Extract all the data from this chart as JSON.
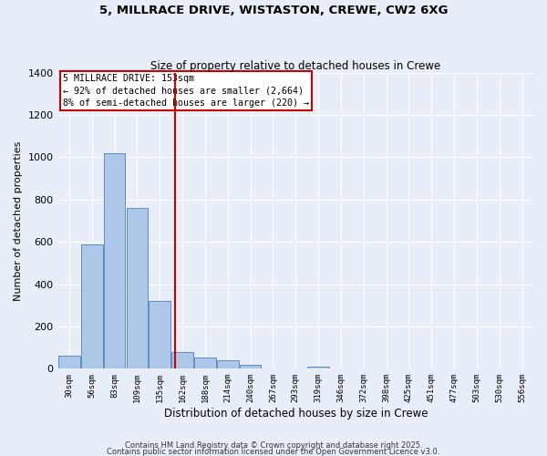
{
  "title1": "5, MILLRACE DRIVE, WISTASTON, CREWE, CW2 6XG",
  "title2": "Size of property relative to detached houses in Crewe",
  "xlabel": "Distribution of detached houses by size in Crewe",
  "ylabel": "Number of detached properties",
  "categories": [
    "30sqm",
    "56sqm",
    "83sqm",
    "109sqm",
    "135sqm",
    "162sqm",
    "188sqm",
    "214sqm",
    "240sqm",
    "267sqm",
    "293sqm",
    "319sqm",
    "346sqm",
    "372sqm",
    "398sqm",
    "425sqm",
    "451sqm",
    "477sqm",
    "503sqm",
    "530sqm",
    "556sqm"
  ],
  "values": [
    60,
    590,
    1020,
    760,
    320,
    80,
    55,
    40,
    20,
    0,
    0,
    10,
    0,
    0,
    0,
    0,
    0,
    0,
    0,
    0,
    0
  ],
  "bar_color": "#aec6e8",
  "bar_edge_color": "#5b8ec4",
  "annotation_line1": "5 MILLRACE DRIVE: 153sqm",
  "annotation_line2": "← 92% of detached houses are smaller (2,664)",
  "annotation_line3": "8% of semi-detached houses are larger (220) →",
  "annotation_box_color": "#ffffff",
  "annotation_box_edge": "#cc0000",
  "redline_color": "#cc0000",
  "ylim": [
    0,
    1400
  ],
  "yticks": [
    0,
    200,
    400,
    600,
    800,
    1000,
    1200,
    1400
  ],
  "bg_color": "#e8eef8",
  "grid_color": "#ffffff",
  "footer1": "Contains HM Land Registry data © Crown copyright and database right 2025.",
  "footer2": "Contains public sector information licensed under the Open Government Licence v3.0."
}
